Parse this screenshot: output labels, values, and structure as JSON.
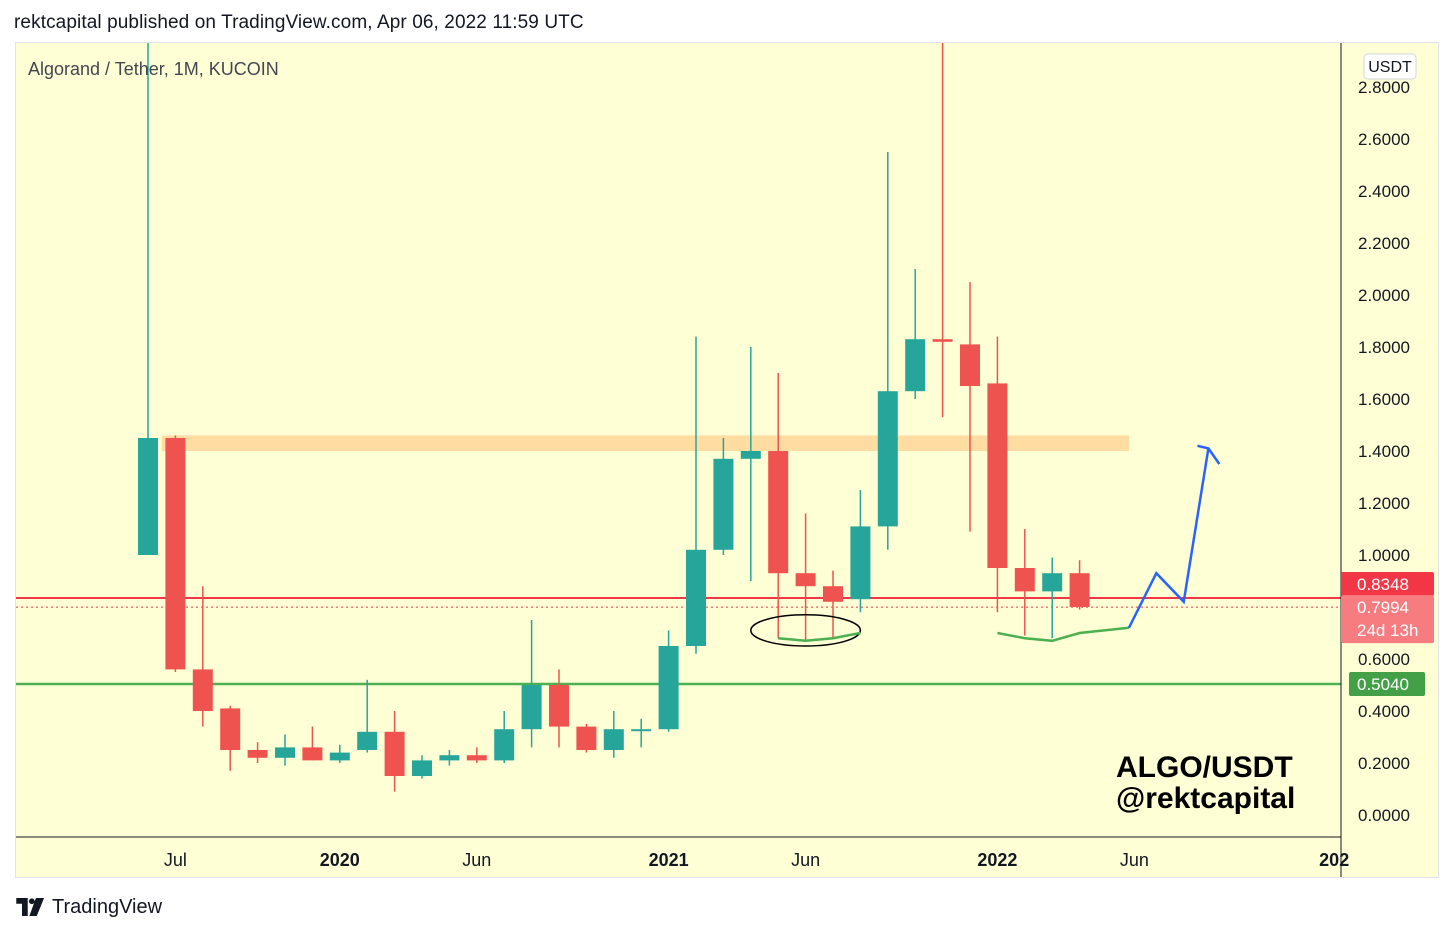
{
  "header": {
    "caption": "rektcapital published on TradingView.com, Apr 06, 2022 11:59 UTC"
  },
  "footer": {
    "brand": "TradingView",
    "logo_icon": "tradingview-logo-icon"
  },
  "colors": {
    "background": "#ffffd6",
    "up": "#26a69a",
    "down": "#ef5350",
    "resistance_zone": "#ffd699",
    "support_line": "#4caf50",
    "current_price_line": "#f23645",
    "projection": "#2962ff",
    "label_green": "#43a047",
    "label_red": "#f23645"
  },
  "chart_data": {
    "type": "candlestick",
    "symbol_title": "Algorand / Tether, 1M, KUCOIN",
    "currency_badge": "USDT",
    "watermark": [
      "ALGO/USDT",
      "@rektcapital"
    ],
    "y_ticks": [
      "2.8000",
      "2.6000",
      "2.4000",
      "2.2000",
      "2.0000",
      "1.8000",
      "1.6000",
      "1.4000",
      "1.2000",
      "1.0000",
      "0.6000",
      "0.4000",
      "0.2000",
      "0.0000"
    ],
    "y_tick_values": [
      2.8,
      2.6,
      2.4,
      2.2,
      2.0,
      1.8,
      1.6,
      1.4,
      1.2,
      1.0,
      0.6,
      0.4,
      0.2,
      0.0
    ],
    "ylim": [
      -0.08,
      2.9
    ],
    "x_ticks": [
      {
        "label": "Jul",
        "index": 1,
        "bold": false
      },
      {
        "label": "2020",
        "index": 7,
        "bold": true
      },
      {
        "label": "Jun",
        "index": 12,
        "bold": false
      },
      {
        "label": "2021",
        "index": 19,
        "bold": true
      },
      {
        "label": "Jun",
        "index": 24,
        "bold": false
      },
      {
        "label": "2022",
        "index": 31,
        "bold": true
      },
      {
        "label": "Jun",
        "index": 36,
        "bold": false
      },
      {
        "label": "202",
        "index": 43,
        "bold": true
      }
    ],
    "x_index_range": [
      -0.6,
      43.8
    ],
    "candles": [
      {
        "month": "2019-06",
        "open": 1.0,
        "high": 3.2,
        "low": 1.0,
        "close": 1.45
      },
      {
        "month": "2019-07",
        "open": 1.45,
        "high": 1.46,
        "low": 0.55,
        "close": 0.56
      },
      {
        "month": "2019-08",
        "open": 0.56,
        "high": 0.88,
        "low": 0.34,
        "close": 0.4
      },
      {
        "month": "2019-09",
        "open": 0.41,
        "high": 0.42,
        "low": 0.17,
        "close": 0.25
      },
      {
        "month": "2019-10",
        "open": 0.25,
        "high": 0.28,
        "low": 0.2,
        "close": 0.22
      },
      {
        "month": "2019-11",
        "open": 0.22,
        "high": 0.31,
        "low": 0.19,
        "close": 0.26
      },
      {
        "month": "2019-12",
        "open": 0.26,
        "high": 0.34,
        "low": 0.21,
        "close": 0.21
      },
      {
        "month": "2020-01",
        "open": 0.21,
        "high": 0.27,
        "low": 0.2,
        "close": 0.24
      },
      {
        "month": "2020-02",
        "open": 0.25,
        "high": 0.52,
        "low": 0.24,
        "close": 0.32
      },
      {
        "month": "2020-03",
        "open": 0.32,
        "high": 0.4,
        "low": 0.09,
        "close": 0.15
      },
      {
        "month": "2020-04",
        "open": 0.15,
        "high": 0.23,
        "low": 0.14,
        "close": 0.21
      },
      {
        "month": "2020-05",
        "open": 0.21,
        "high": 0.25,
        "low": 0.19,
        "close": 0.23
      },
      {
        "month": "2020-06",
        "open": 0.23,
        "high": 0.26,
        "low": 0.2,
        "close": 0.21
      },
      {
        "month": "2020-07",
        "open": 0.21,
        "high": 0.4,
        "low": 0.2,
        "close": 0.33
      },
      {
        "month": "2020-08",
        "open": 0.33,
        "high": 0.75,
        "low": 0.26,
        "close": 0.5
      },
      {
        "month": "2020-09",
        "open": 0.5,
        "high": 0.56,
        "low": 0.26,
        "close": 0.34
      },
      {
        "month": "2020-10",
        "open": 0.34,
        "high": 0.35,
        "low": 0.24,
        "close": 0.25
      },
      {
        "month": "2020-11",
        "open": 0.25,
        "high": 0.4,
        "low": 0.22,
        "close": 0.33
      },
      {
        "month": "2020-12",
        "open": 0.33,
        "high": 0.37,
        "low": 0.26,
        "close": 0.33
      },
      {
        "month": "2021-01",
        "open": 0.33,
        "high": 0.71,
        "low": 0.32,
        "close": 0.65
      },
      {
        "month": "2021-02",
        "open": 0.65,
        "high": 1.84,
        "low": 0.62,
        "close": 1.02
      },
      {
        "month": "2021-03",
        "open": 1.02,
        "high": 1.45,
        "low": 1.0,
        "close": 1.37
      },
      {
        "month": "2021-04",
        "open": 1.37,
        "high": 1.8,
        "low": 0.9,
        "close": 1.4
      },
      {
        "month": "2021-05",
        "open": 1.4,
        "high": 1.7,
        "low": 0.68,
        "close": 0.93
      },
      {
        "month": "2021-06",
        "open": 0.93,
        "high": 1.16,
        "low": 0.67,
        "close": 0.88
      },
      {
        "month": "2021-07",
        "open": 0.88,
        "high": 0.94,
        "low": 0.68,
        "close": 0.82
      },
      {
        "month": "2021-08",
        "open": 0.83,
        "high": 1.25,
        "low": 0.78,
        "close": 1.11
      },
      {
        "month": "2021-09",
        "open": 1.11,
        "high": 2.55,
        "low": 1.02,
        "close": 1.63
      },
      {
        "month": "2021-10",
        "open": 1.63,
        "high": 2.1,
        "low": 1.6,
        "close": 1.83
      },
      {
        "month": "2021-11",
        "open": 1.83,
        "high": 2.99,
        "low": 1.53,
        "close": 1.82
      },
      {
        "month": "2021-12",
        "open": 1.81,
        "high": 2.05,
        "low": 1.09,
        "close": 1.65
      },
      {
        "month": "2022-01",
        "open": 1.66,
        "high": 1.84,
        "low": 0.78,
        "close": 0.95
      },
      {
        "month": "2022-02",
        "open": 0.95,
        "high": 1.1,
        "low": 0.69,
        "close": 0.86
      },
      {
        "month": "2022-03",
        "open": 0.86,
        "high": 0.99,
        "low": 0.68,
        "close": 0.93
      },
      {
        "month": "2022-04",
        "open": 0.93,
        "high": 0.98,
        "low": 0.79,
        "close": 0.8
      }
    ],
    "zones": [
      {
        "kind": "resistance",
        "y_low": 1.4,
        "y_high": 1.46,
        "x_start": 0.5,
        "x_end": 35.8
      }
    ],
    "lines": [
      {
        "kind": "support",
        "y": 0.504,
        "label": "0.5040",
        "style": "solid"
      },
      {
        "kind": "resistance-red",
        "y": 0.8348,
        "label": "0.8348",
        "style": "solid"
      },
      {
        "kind": "last-price",
        "y": 0.7994,
        "label": "0.7994",
        "countdown": "24d 13h",
        "style": "dotted"
      }
    ],
    "drawings": [
      {
        "kind": "ellipse",
        "cx": 24.0,
        "cy": 0.71,
        "rx": 1.0,
        "ry": 0.06
      },
      {
        "kind": "polyline",
        "color": "green",
        "points": [
          [
            23.0,
            0.68
          ],
          [
            24.0,
            0.67
          ],
          [
            25.0,
            0.68
          ],
          [
            26.0,
            0.7
          ]
        ]
      },
      {
        "kind": "polyline",
        "color": "green",
        "points": [
          [
            31.0,
            0.7
          ],
          [
            32.0,
            0.68
          ],
          [
            33.0,
            0.67
          ],
          [
            34.0,
            0.7
          ],
          [
            35.8,
            0.72
          ]
        ]
      },
      {
        "kind": "arrow-path",
        "color": "blue",
        "points": [
          [
            35.8,
            0.72
          ],
          [
            36.8,
            0.93
          ],
          [
            37.8,
            0.82
          ],
          [
            38.7,
            1.41
          ]
        ],
        "arrow_head": [
          [
            38.3,
            1.42
          ],
          [
            38.7,
            1.41
          ],
          [
            39.1,
            1.35
          ]
        ]
      }
    ]
  }
}
